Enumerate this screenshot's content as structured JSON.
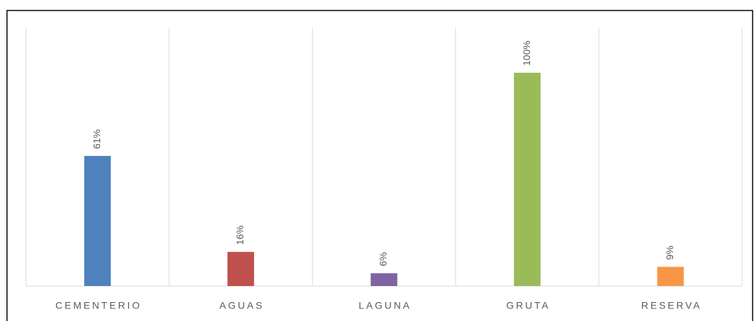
{
  "chart_data": {
    "type": "bar",
    "categories": [
      "CEMENTERIO",
      "AGUAS",
      "LAGUNA",
      "GRUTA",
      "RESERVA"
    ],
    "values": [
      61,
      16,
      6,
      100,
      9
    ],
    "value_labels": [
      "61%",
      "16%",
      "6%",
      "100%",
      "9%"
    ],
    "colors": [
      "#4f81bd",
      "#c0504d",
      "#8064a2",
      "#9bbb59",
      "#f79646"
    ],
    "ylim": [
      0,
      100
    ]
  }
}
